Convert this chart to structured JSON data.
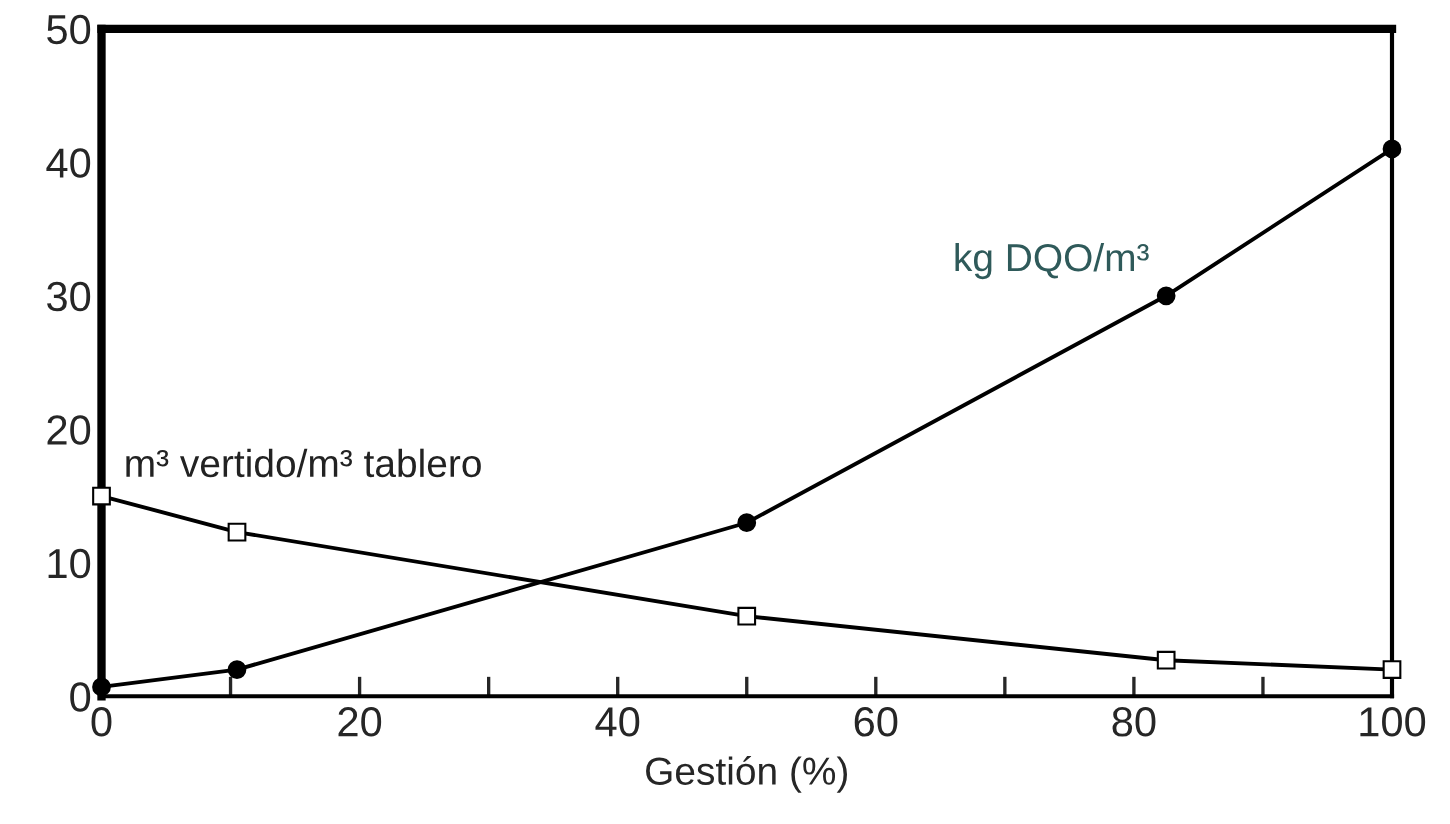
{
  "chart_data": {
    "type": "line",
    "xlabel": "Gestión (%)",
    "x": [
      0,
      10.5,
      50,
      82.5,
      100
    ],
    "series": [
      {
        "name": "kg DQO/m³",
        "color": "#000000",
        "marker": "circle",
        "values": [
          0.7,
          2,
          13,
          30,
          41
        ]
      },
      {
        "name": "m³ vertido/m³ tablero",
        "color": "#000000",
        "marker": "square",
        "values": [
          15,
          12.3,
          6,
          2.7,
          2
        ]
      }
    ],
    "xlim": [
      0,
      100
    ],
    "ylim": [
      0,
      50
    ],
    "xticks": [
      0,
      {
        "value": 10,
        "label": null
      },
      20,
      {
        "value": 30,
        "label": null
      },
      40,
      {
        "value": 50,
        "label": null
      },
      60,
      {
        "value": 70,
        "label": null
      },
      80,
      {
        "value": 90,
        "label": null
      },
      100
    ],
    "yticks": [
      0,
      10,
      20,
      30,
      40,
      50
    ],
    "grid": false,
    "legend": false,
    "line_style": "solid"
  }
}
